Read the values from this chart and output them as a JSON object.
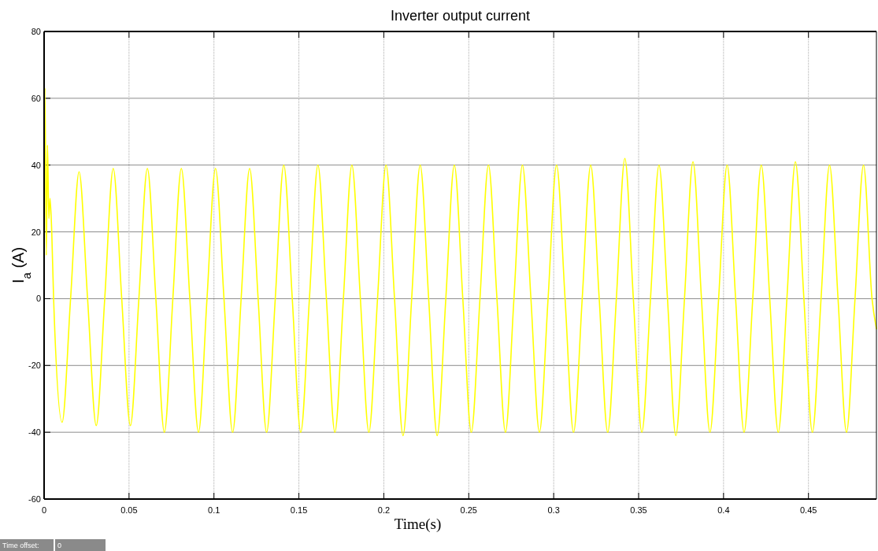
{
  "chart_data": {
    "type": "line",
    "title": "Inverter output current",
    "xlabel": "Time(s)",
    "ylabel": "I$_{a}$ (A)",
    "annotations": [
      "Time offset:",
      "0"
    ],
    "x": [
      0,
      0.0005,
      0.0013,
      0.002,
      0.0028,
      0.0035,
      0.0045,
      0.0056,
      0.0106,
      0.0156,
      0.0206,
      0.0256,
      0.0307,
      0.0357,
      0.0407,
      0.0457,
      0.0508,
      0.0558,
      0.0608,
      0.0658,
      0.0708,
      0.0758,
      0.0808,
      0.0858,
      0.0909,
      0.0959,
      0.1009,
      0.1059,
      0.111,
      0.116,
      0.121,
      0.126,
      0.131,
      0.1361,
      0.1411,
      0.1461,
      0.1511,
      0.1562,
      0.1612,
      0.1662,
      0.1712,
      0.1762,
      0.1812,
      0.1862,
      0.1912,
      0.1963,
      0.2013,
      0.2063,
      0.2113,
      0.2164,
      0.2214,
      0.2264,
      0.2314,
      0.2365,
      0.2415,
      0.2465,
      0.2515,
      0.2566,
      0.2616,
      0.2666,
      0.2716,
      0.2766,
      0.2816,
      0.2866,
      0.2916,
      0.2967,
      0.3017,
      0.3067,
      0.3117,
      0.3168,
      0.3218,
      0.3268,
      0.3318,
      0.3369,
      0.3419,
      0.3469,
      0.3519,
      0.357,
      0.362,
      0.367,
      0.3719,
      0.377,
      0.382,
      0.387,
      0.392,
      0.3971,
      0.4021,
      0.4071,
      0.4121,
      0.4172,
      0.4222,
      0.4272,
      0.4322,
      0.4373,
      0.4423,
      0.4473,
      0.4523,
      0.4574,
      0.4624,
      0.4674,
      0.4724,
      0.4774,
      0.4824,
      0.4874,
      0.49
    ],
    "series": [
      {
        "color": "#ffff00",
        "values": [
          22,
          63,
          13,
          46,
          24,
          30,
          20,
          0,
          -37,
          0,
          38,
          0,
          -38,
          0,
          39,
          0,
          -38,
          0,
          39,
          0,
          -40,
          0,
          39,
          0,
          -40,
          0,
          39,
          0,
          -40,
          0,
          39,
          0,
          -40,
          0,
          40,
          0,
          -40,
          0,
          40,
          0,
          -40,
          0,
          40,
          0,
          -40,
          0,
          40,
          0,
          -41,
          0,
          40,
          0,
          -41,
          0,
          40,
          0,
          -40,
          0,
          40,
          0,
          -40,
          0,
          40,
          0,
          -40,
          0,
          40,
          0,
          -40,
          0,
          40,
          0,
          -40,
          0,
          42,
          0,
          -40,
          0,
          40,
          0,
          -41,
          0,
          41,
          0,
          -40,
          0,
          40,
          0,
          -40,
          0,
          40,
          0,
          -40,
          0,
          41,
          0,
          -40,
          0,
          40,
          0,
          -40,
          0,
          40,
          0,
          -9
        ]
      }
    ],
    "xlim": [
      0,
      0.49
    ],
    "xticks": [
      0,
      0.05,
      0.1,
      0.15,
      0.2,
      0.25,
      0.3,
      0.35,
      0.4,
      0.45
    ],
    "ylim": [
      -60,
      80
    ],
    "yticks": [
      -60,
      -40,
      -20,
      0,
      20,
      40,
      60,
      80
    ],
    "grid": true,
    "marker": "none",
    "line_style": "solid"
  }
}
